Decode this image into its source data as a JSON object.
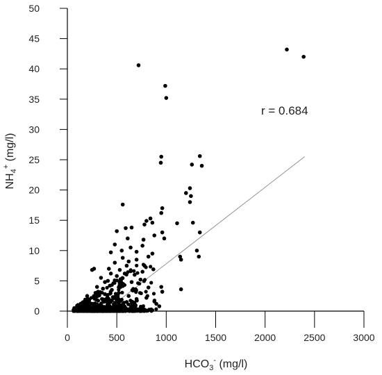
{
  "chart_data": {
    "type": "scatter",
    "xlabel": {
      "base": "HCO",
      "sub": "3",
      "sup": "-",
      "unit": " (mg/l)"
    },
    "ylabel": {
      "base": "NH",
      "sub": "4",
      "sup": "+",
      "unit": " (mg/l)"
    },
    "xlim": [
      0,
      3000
    ],
    "ylim": [
      0,
      50
    ],
    "xticks": [
      "0",
      "500",
      "1000",
      "1500",
      "2000",
      "2500",
      "3000"
    ],
    "yticks": [
      "0",
      "5",
      "10",
      "15",
      "20",
      "25",
      "30",
      "35",
      "40",
      "45",
      "50"
    ],
    "annotation": "r = 0.684",
    "grid": false,
    "trendline": {
      "x": [
        500,
        2400
      ],
      "y": [
        1.5,
        25.5
      ]
    },
    "points": [
      [
        720,
        40.6
      ],
      [
        990,
        37.2
      ],
      [
        1000,
        35.2
      ],
      [
        2220,
        43.2
      ],
      [
        2390,
        42.0
      ],
      [
        950,
        25.5
      ],
      [
        945,
        24.5
      ],
      [
        1340,
        25.6
      ],
      [
        1360,
        24.0
      ],
      [
        1260,
        24.2
      ],
      [
        1240,
        20.3
      ],
      [
        1200,
        19.5
      ],
      [
        1250,
        19.0
      ],
      [
        1240,
        18.0
      ],
      [
        560,
        17.6
      ],
      [
        960,
        17.0
      ],
      [
        950,
        16.2
      ],
      [
        840,
        15.3
      ],
      [
        860,
        14.6
      ],
      [
        800,
        14.9
      ],
      [
        780,
        14.3
      ],
      [
        1110,
        14.5
      ],
      [
        1270,
        14.6
      ],
      [
        650,
        13.8
      ],
      [
        590,
        13.7
      ],
      [
        500,
        13.2
      ],
      [
        880,
        12.5
      ],
      [
        960,
        13.0
      ],
      [
        1340,
        13.0
      ],
      [
        980,
        12.0
      ],
      [
        770,
        11.8
      ],
      [
        610,
        12.0
      ],
      [
        760,
        10.8
      ],
      [
        640,
        10.5
      ],
      [
        550,
        10.0
      ],
      [
        440,
        9.7
      ],
      [
        860,
        9.5
      ],
      [
        1310,
        10.0
      ],
      [
        1330,
        9.0
      ],
      [
        1140,
        9.0
      ],
      [
        1150,
        8.5
      ],
      [
        560,
        8.8
      ],
      [
        700,
        8.5
      ],
      [
        820,
        9.0
      ],
      [
        480,
        8.0
      ],
      [
        600,
        7.5
      ],
      [
        420,
        7.0
      ],
      [
        250,
        6.8
      ],
      [
        270,
        7.0
      ],
      [
        760,
        6.5
      ],
      [
        680,
        6.0
      ],
      [
        580,
        6.2
      ],
      [
        950,
        4.0
      ],
      [
        1150,
        3.6
      ],
      [
        960,
        3.2
      ],
      [
        340,
        5.5
      ],
      [
        380,
        4.8
      ],
      [
        300,
        4.0
      ],
      [
        450,
        3.5
      ],
      [
        520,
        3.0
      ],
      [
        620,
        2.5
      ],
      [
        700,
        2.0
      ],
      [
        800,
        2.2
      ],
      [
        880,
        1.6
      ],
      [
        900,
        1.2
      ],
      [
        930,
        0.8
      ],
      [
        200,
        2.5
      ],
      [
        220,
        1.8
      ],
      [
        260,
        1.2
      ],
      [
        350,
        2.0
      ],
      [
        400,
        1.5
      ],
      [
        480,
        1.0
      ],
      [
        550,
        0.8
      ],
      [
        650,
        0.5
      ],
      [
        720,
        0.3
      ],
      [
        150,
        0.5
      ],
      [
        120,
        0.2
      ],
      [
        90,
        0.1
      ],
      [
        180,
        0.8
      ],
      [
        300,
        0.4
      ],
      [
        330,
        1.0
      ],
      [
        420,
        0.6
      ],
      [
        500,
        0.2
      ],
      [
        580,
        0.1
      ],
      [
        600,
        1.5
      ],
      [
        460,
        2.3
      ],
      [
        380,
        2.8
      ],
      [
        560,
        4.5
      ],
      [
        500,
        5.8
      ],
      [
        430,
        4.2
      ],
      [
        650,
        4.8
      ],
      [
        740,
        5.2
      ],
      [
        690,
        3.6
      ],
      [
        820,
        3.9
      ],
      [
        780,
        7.5
      ],
      [
        870,
        6.9
      ],
      [
        530,
        6.8
      ],
      [
        620,
        8.2
      ],
      [
        700,
        9.8
      ],
      [
        480,
        11.0
      ],
      [
        310,
        3.2
      ],
      [
        270,
        2.2
      ],
      [
        360,
        3.7
      ],
      [
        410,
        5.0
      ],
      [
        440,
        6.2
      ]
    ]
  }
}
